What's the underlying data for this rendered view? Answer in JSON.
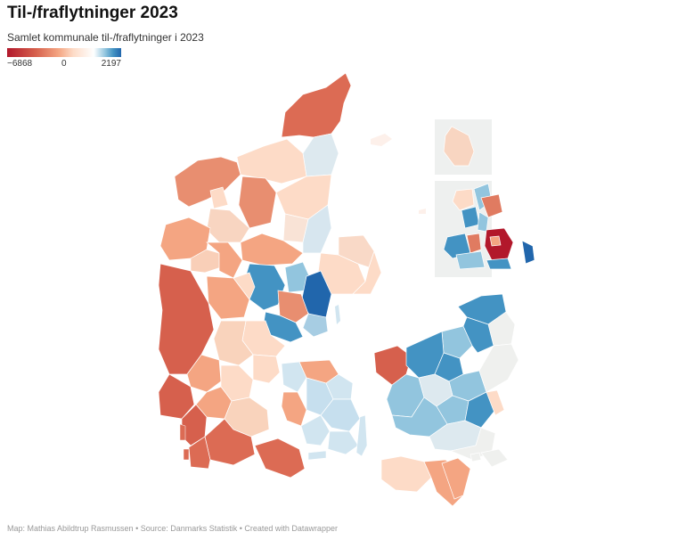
{
  "header": {
    "title": "Til-/fraflytninger 2023",
    "subtitle": "Samlet kommunale til-/fraflytninger i 2023"
  },
  "legend": {
    "min_label": "−6868",
    "mid_label": "0",
    "max_label": "2197",
    "min_value": -6868,
    "max_value": 2197,
    "colors": [
      "#b2182b",
      "#d6604d",
      "#f4a582",
      "#fddbc7",
      "#ffffff",
      "#92c5de",
      "#4393c3",
      "#2166ac"
    ]
  },
  "footer": {
    "credit": "Map: Mathias Abildtrup Rasmussen • Source: Danmarks Statistik • Created with Datawrapper"
  },
  "colors": {
    "strong_loss": "#b2182b",
    "loss": "#d6604d",
    "mild_loss": "#f4a582",
    "slight_loss": "#fddbc7",
    "neutral": "#f0f0ee",
    "slight_gain": "#d1e5f0",
    "gain": "#92c5de",
    "mid_gain": "#4393c3",
    "strong_gain": "#2166ac"
  }
}
